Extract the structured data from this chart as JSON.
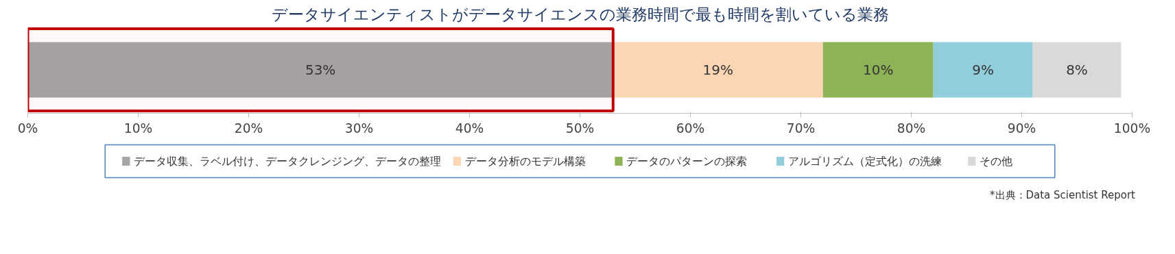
{
  "chart_data": {
    "type": "bar",
    "orientation": "horizontal",
    "stacked": true,
    "title": "データサイエンティストがデータサイエンスの業務時間で最も時間を割いている業務",
    "categories": [
      null
    ],
    "series": [
      {
        "name": "データ収集、ラベル付け、データクレンジング、データの整理",
        "color": "#a6a6a6",
        "values": [
          53
        ]
      },
      {
        "name": "データ分析のモデル構築",
        "color": "#fcd5b5",
        "values": [
          19
        ]
      },
      {
        "name": "データのパターンの探索",
        "color": "#8db356",
        "values": [
          10
        ]
      },
      {
        "name": "アルゴリズム（定式化）の洗練",
        "color": "#92cddc",
        "values": [
          9
        ]
      },
      {
        "name": "その他",
        "color": "#d9d9d9",
        "values": [
          8
        ]
      }
    ],
    "xlim": [
      0,
      100
    ],
    "xticks": [
      {
        "value": 0,
        "label": "0%"
      },
      {
        "value": 10,
        "label": "10%"
      },
      {
        "value": 20,
        "label": "20%"
      },
      {
        "value": 30,
        "label": "30%"
      },
      {
        "value": 40,
        "label": "40%"
      },
      {
        "value": 50,
        "label": "50%"
      },
      {
        "value": 60,
        "label": "60%"
      },
      {
        "value": 70,
        "label": "70%"
      },
      {
        "value": 80,
        "label": "80%"
      },
      {
        "value": 90,
        "label": "90%"
      },
      {
        "value": 100,
        "label": "100%"
      }
    ],
    "value_labels": [
      "53%",
      "19%",
      "10%",
      "9%",
      "8%"
    ],
    "bands": [
      {
        "axis": "x",
        "from": 0,
        "to": 53,
        "color": "#c00000"
      }
    ],
    "legend": "bottom",
    "grid": false,
    "tick_labels": "x",
    "annotations": [
      "*出典：Data Scientist Report"
    ]
  }
}
